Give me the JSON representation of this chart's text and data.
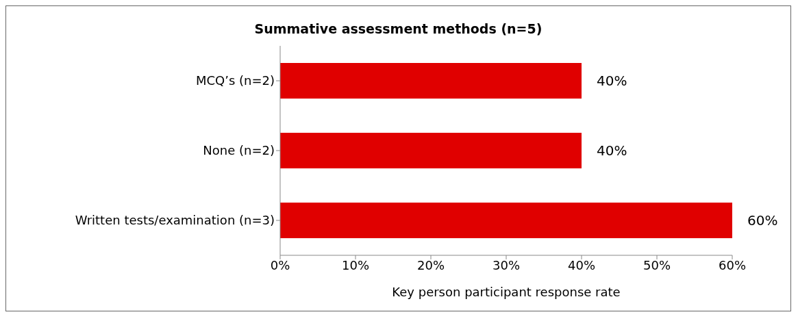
{
  "chart_data": {
    "type": "bar",
    "orientation": "horizontal",
    "title": "Summative assessment methods (n=5)",
    "xlabel": "Key person participant response rate",
    "categories": [
      "MCQ’s (n=2)",
      "None (n=2)",
      "Written tests/examination (n=3)"
    ],
    "values": [
      40,
      40,
      60
    ],
    "color": "#e00000",
    "value_labels": [
      "40%",
      "40%",
      "60%"
    ],
    "xlim": [
      0,
      60
    ],
    "xticks": [
      {
        "value": 0,
        "label": "0%"
      },
      {
        "value": 10,
        "label": "10%"
      },
      {
        "value": 20,
        "label": "20%"
      },
      {
        "value": 30,
        "label": "30%"
      },
      {
        "value": 40,
        "label": "40%"
      },
      {
        "value": 50,
        "label": "50%"
      },
      {
        "value": 60,
        "label": "60%"
      }
    ],
    "grid": false,
    "legend": false
  }
}
